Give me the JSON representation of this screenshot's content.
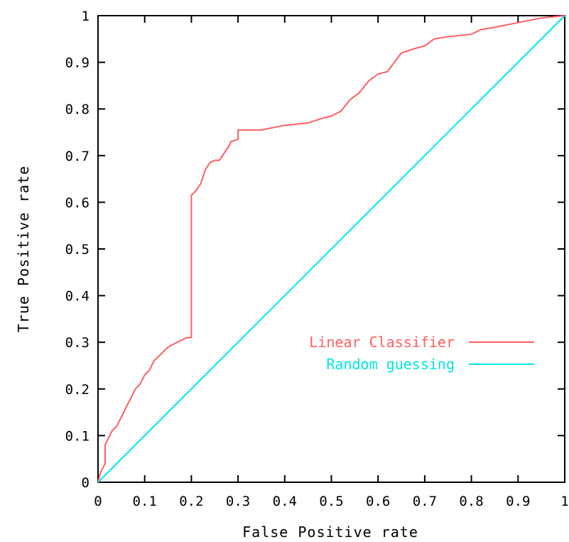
{
  "chart_data": {
    "type": "line",
    "title": "",
    "xlabel": "False Positive rate",
    "ylabel": "True Positive rate",
    "xlim": [
      0,
      1
    ],
    "ylim": [
      0,
      1
    ],
    "x_ticks": [
      "0",
      "0.1",
      "0.2",
      "0.3",
      "0.4",
      "0.5",
      "0.6",
      "0.7",
      "0.8",
      "0.9",
      "1"
    ],
    "y_ticks": [
      "0",
      "0.1",
      "0.2",
      "0.3",
      "0.4",
      "0.5",
      "0.6",
      "0.7",
      "0.8",
      "0.9",
      "1"
    ],
    "grid": false,
    "legend_position": "right, middle",
    "series": [
      {
        "name": "Linear Classifier",
        "color": "#ff5f5f",
        "x": [
          0,
          0.005,
          0.01,
          0.015,
          0.015,
          0.02,
          0.025,
          0.03,
          0.04,
          0.05,
          0.06,
          0.07,
          0.075,
          0.08,
          0.09,
          0.1,
          0.11,
          0.12,
          0.13,
          0.14,
          0.15,
          0.16,
          0.17,
          0.18,
          0.19,
          0.2,
          0.2,
          0.21,
          0.22,
          0.23,
          0.24,
          0.25,
          0.26,
          0.28,
          0.285,
          0.3,
          0.3,
          0.35,
          0.4,
          0.45,
          0.48,
          0.5,
          0.52,
          0.54,
          0.56,
          0.58,
          0.6,
          0.62,
          0.65,
          0.68,
          0.7,
          0.72,
          0.75,
          0.8,
          0.82,
          0.85,
          0.9,
          0.95,
          1.0
        ],
        "y": [
          0,
          0.02,
          0.03,
          0.04,
          0.08,
          0.09,
          0.1,
          0.11,
          0.12,
          0.14,
          0.16,
          0.18,
          0.19,
          0.2,
          0.21,
          0.23,
          0.24,
          0.26,
          0.27,
          0.28,
          0.29,
          0.295,
          0.3,
          0.305,
          0.31,
          0.31,
          0.615,
          0.625,
          0.64,
          0.67,
          0.685,
          0.69,
          0.69,
          0.72,
          0.73,
          0.735,
          0.755,
          0.755,
          0.765,
          0.77,
          0.78,
          0.785,
          0.795,
          0.82,
          0.835,
          0.86,
          0.875,
          0.88,
          0.92,
          0.93,
          0.935,
          0.95,
          0.955,
          0.96,
          0.97,
          0.975,
          0.985,
          0.995,
          1.0
        ]
      },
      {
        "name": "Random guessing",
        "color": "#00e5e5",
        "x": [
          0,
          1
        ],
        "y": [
          0,
          1
        ]
      }
    ]
  }
}
